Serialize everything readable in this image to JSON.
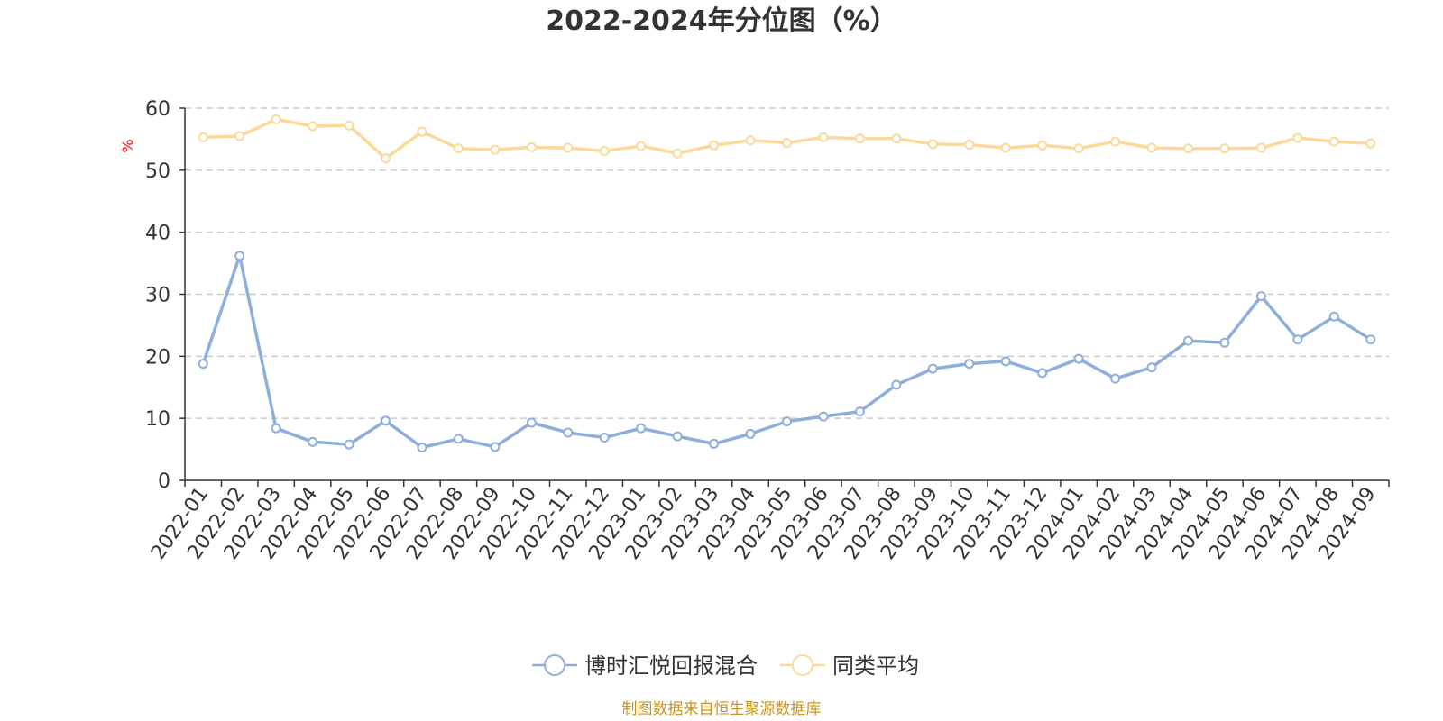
{
  "chart_data": {
    "type": "line",
    "title": "2022-2024年分位图（%）",
    "ylabel": "%",
    "xlabel": "",
    "ylim": [
      0,
      60
    ],
    "yticks": [
      0,
      10,
      20,
      30,
      40,
      50,
      60
    ],
    "grid": true,
    "legend_position": "bottom",
    "categories": [
      "2022-01",
      "2022-02",
      "2022-03",
      "2022-04",
      "2022-05",
      "2022-06",
      "2022-07",
      "2022-08",
      "2022-09",
      "2022-10",
      "2022-11",
      "2022-12",
      "2023-01",
      "2023-02",
      "2023-03",
      "2023-04",
      "2023-05",
      "2023-06",
      "2023-07",
      "2023-08",
      "2023-09",
      "2023-10",
      "2023-11",
      "2023-12",
      "2024-01",
      "2024-02",
      "2024-03",
      "2024-04",
      "2024-05",
      "2024-06",
      "2024-07",
      "2024-08",
      "2024-09"
    ],
    "series": [
      {
        "name": "博时汇悦回报混合",
        "color": "#8eaedb",
        "values": [
          18.8,
          36.2,
          8.4,
          6.2,
          5.8,
          9.6,
          5.3,
          6.7,
          5.4,
          9.3,
          7.7,
          6.9,
          8.4,
          7.1,
          5.9,
          7.5,
          9.5,
          10.3,
          11.1,
          15.4,
          18.0,
          18.8,
          19.2,
          17.3,
          19.6,
          16.4,
          18.2,
          22.5,
          22.2,
          29.7,
          22.7,
          26.4,
          22.7
        ]
      },
      {
        "name": "同类平均",
        "color": "#fcd99a",
        "values": [
          55.3,
          55.5,
          58.2,
          57.1,
          57.2,
          51.9,
          56.2,
          53.5,
          53.3,
          53.7,
          53.6,
          53.1,
          53.9,
          52.7,
          54.0,
          54.8,
          54.4,
          55.3,
          55.1,
          55.1,
          54.2,
          54.1,
          53.6,
          54.0,
          53.5,
          54.6,
          53.6,
          53.5,
          53.5,
          53.6,
          55.2,
          54.6,
          54.3
        ]
      }
    ],
    "source": "制图数据来自恒生聚源数据库",
    "source_color": "#c8961e",
    "unit_color": "#ff0000",
    "axis_color": "#333333",
    "grid_color": "#cccccc"
  }
}
